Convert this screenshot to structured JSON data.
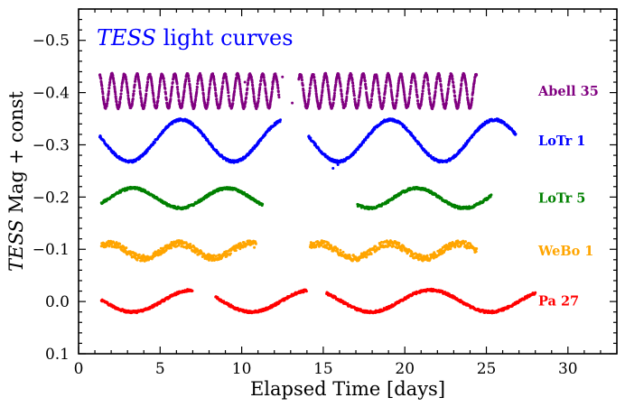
{
  "chart_data": {
    "type": "scatter",
    "title": "TESS light curves",
    "title_parts": {
      "italic": "TESS",
      "rest": " light curves"
    },
    "xlabel": "Elapsed Time [days]",
    "ylabel": "TESS Mag + const",
    "ylabel_parts": {
      "italic": "TESS",
      "rest": " Mag + const"
    },
    "xlim": [
      0,
      33
    ],
    "ylim": [
      0.1,
      -0.56
    ],
    "x_ticks": [
      0,
      5,
      10,
      15,
      20,
      25,
      30
    ],
    "x_tick_labels": [
      "0",
      "5",
      "10",
      "15",
      "20",
      "25",
      "30"
    ],
    "y_ticks": [
      -0.5,
      -0.4,
      -0.3,
      -0.2,
      -0.1,
      0.0,
      0.1
    ],
    "y_tick_labels": [
      "−0.5",
      "−0.4",
      "−0.3",
      "−0.2",
      "−0.1",
      "0.0",
      "0.1"
    ],
    "grid": false,
    "series": [
      {
        "name": "Abell 35",
        "color": "#800080",
        "offset": -0.403,
        "amplitude": 0.032,
        "period_days": 0.77,
        "phase": 0.6,
        "segments": [
          [
            1.3,
            12.3
          ],
          [
            13.5,
            24.4
          ]
        ],
        "outliers": [
          [
            12.5,
            -0.43
          ],
          [
            13.1,
            -0.38
          ],
          [
            11.9,
            -0.42
          ],
          [
            10.2,
            -0.42
          ]
        ]
      },
      {
        "name": "LoTr 1",
        "color": "#0000ff",
        "offset": -0.308,
        "amplitude": 0.04,
        "period_days": 6.4,
        "phase": 4.8,
        "segments": [
          [
            1.3,
            12.4
          ],
          [
            14.1,
            26.8
          ]
        ],
        "outliers": [
          [
            15.6,
            -0.255
          ],
          [
            15.9,
            -0.262
          ]
        ]
      },
      {
        "name": "LoTr 5",
        "color": "#008000",
        "offset": -0.198,
        "amplitude": 0.019,
        "period_days": 5.8,
        "phase": 1.1,
        "segments": [
          [
            1.4,
            11.3
          ],
          [
            17.1,
            25.3
          ]
        ],
        "outliers": []
      },
      {
        "name": "WeBo 1",
        "color": "#ffa500",
        "offset": -0.097,
        "amplitude": 0.014,
        "period_days": 4.3,
        "phase": 2.0,
        "segments": [
          [
            1.4,
            10.9
          ],
          [
            14.2,
            24.4
          ]
        ],
        "outliers": []
      },
      {
        "name": "Pa 27",
        "color": "#ff0000",
        "offset": -0.001,
        "amplitude": 0.021,
        "period_days": 7.3,
        "phase": 5.0,
        "segments": [
          [
            1.4,
            7.0
          ],
          [
            8.4,
            14.0
          ],
          [
            15.2,
            28.0
          ]
        ],
        "outliers": []
      }
    ]
  }
}
